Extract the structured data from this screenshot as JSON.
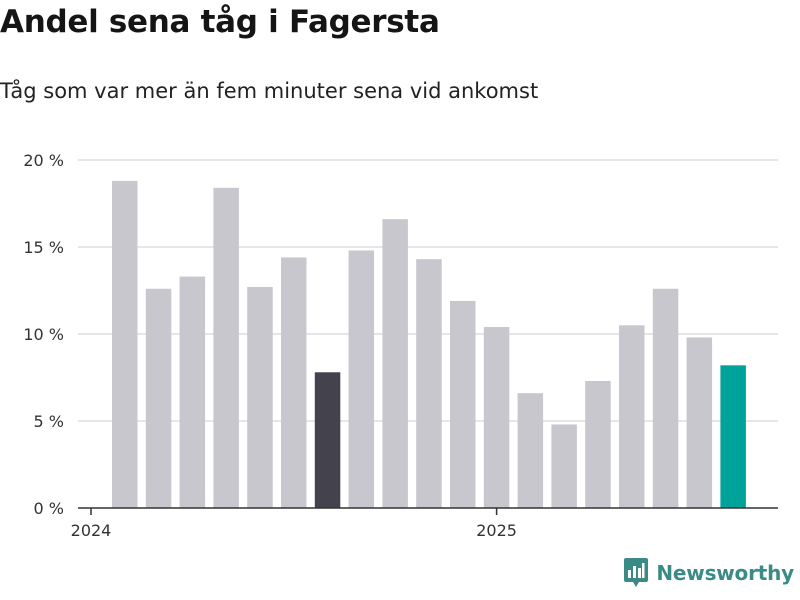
{
  "title": "Andel sena tåg i Fagersta",
  "subtitle": "Tåg som var mer än fem minuter sena vid ankomst",
  "logo": {
    "text": "Newsworthy",
    "icon": "bar-chart-speech-bubble-icon",
    "color": "#3a8b86"
  },
  "colors": {
    "default_bar": "#c8c7ce",
    "highlight_bar": "#44434d",
    "latest_bar": "#00a39a",
    "grid": "#dedede",
    "axis": "#333333"
  },
  "chart_data": {
    "type": "bar",
    "title": "Andel sena tåg i Fagersta",
    "subtitle": "Tåg som var mer än fem minuter sena vid ankomst",
    "xlabel": "",
    "ylabel": "",
    "x_tick_labels": [
      "2024",
      "2025"
    ],
    "x_tick_label_indices": [
      0,
      12
    ],
    "ylim": [
      0,
      20
    ],
    "y_ticks": [
      0,
      5,
      10,
      15,
      20
    ],
    "y_tick_labels": [
      "0 %",
      "5 %",
      "10 %",
      "15 %",
      "20 %"
    ],
    "grid": true,
    "values": [
      18.8,
      12.6,
      13.3,
      18.4,
      12.7,
      14.4,
      7.8,
      14.8,
      16.6,
      14.3,
      11.9,
      10.4,
      6.6,
      4.8,
      7.3,
      10.5,
      12.6,
      9.8,
      8.2
    ],
    "bar_styles": [
      "default",
      "default",
      "default",
      "default",
      "default",
      "default",
      "highlight",
      "default",
      "default",
      "default",
      "default",
      "default",
      "default",
      "default",
      "default",
      "default",
      "default",
      "default",
      "latest"
    ]
  }
}
